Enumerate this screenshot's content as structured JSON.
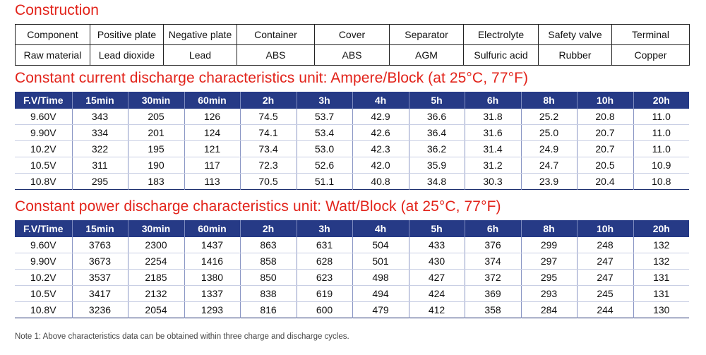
{
  "construction": {
    "title": "Construction",
    "row1": [
      "Component",
      "Positive plate",
      "Negative plate",
      "Container",
      "Cover",
      "Separator",
      "Electrolyte",
      "Safety valve",
      "Terminal"
    ],
    "row2": [
      "Raw material",
      "Lead dioxide",
      "Lead",
      "ABS",
      "ABS",
      "AGM",
      "Sulfuric acid",
      "Rubber",
      "Copper"
    ]
  },
  "constant_current": {
    "title": "Constant current discharge characteristics unit: Ampere/Block (at 25°C, 77°F)",
    "headers": [
      "F.V/Time",
      "15min",
      "30min",
      "60min",
      "2h",
      "3h",
      "4h",
      "5h",
      "6h",
      "8h",
      "10h",
      "20h"
    ],
    "rows": [
      [
        "9.60V",
        "343",
        "205",
        "126",
        "74.5",
        "53.7",
        "42.9",
        "36.6",
        "31.8",
        "25.2",
        "20.8",
        "11.0"
      ],
      [
        "9.90V",
        "334",
        "201",
        "124",
        "74.1",
        "53.4",
        "42.6",
        "36.4",
        "31.6",
        "25.0",
        "20.7",
        "11.0"
      ],
      [
        "10.2V",
        "322",
        "195",
        "121",
        "73.4",
        "53.0",
        "42.3",
        "36.2",
        "31.4",
        "24.9",
        "20.7",
        "11.0"
      ],
      [
        "10.5V",
        "311",
        "190",
        "117",
        "72.3",
        "52.6",
        "42.0",
        "35.9",
        "31.2",
        "24.7",
        "20.5",
        "10.9"
      ],
      [
        "10.8V",
        "295",
        "183",
        "113",
        "70.5",
        "51.1",
        "40.8",
        "34.8",
        "30.3",
        "23.9",
        "20.4",
        "10.8"
      ]
    ]
  },
  "constant_power": {
    "title": "Constant power discharge characteristics unit: Watt/Block (at 25°C, 77°F)",
    "headers": [
      "F.V/Time",
      "15min",
      "30min",
      "60min",
      "2h",
      "3h",
      "4h",
      "5h",
      "6h",
      "8h",
      "10h",
      "20h"
    ],
    "rows": [
      [
        "9.60V",
        "3763",
        "2300",
        "1437",
        "863",
        "631",
        "504",
        "433",
        "376",
        "299",
        "248",
        "132"
      ],
      [
        "9.90V",
        "3673",
        "2254",
        "1416",
        "858",
        "628",
        "501",
        "430",
        "374",
        "297",
        "247",
        "132"
      ],
      [
        "10.2V",
        "3537",
        "2185",
        "1380",
        "850",
        "623",
        "498",
        "427",
        "372",
        "295",
        "247",
        "131"
      ],
      [
        "10.5V",
        "3417",
        "2132",
        "1337",
        "838",
        "619",
        "494",
        "424",
        "369",
        "293",
        "245",
        "131"
      ],
      [
        "10.8V",
        "3236",
        "2054",
        "1293",
        "816",
        "600",
        "479",
        "412",
        "358",
        "284",
        "244",
        "130"
      ]
    ]
  },
  "note": "Note 1: Above characteristics data can be obtained within three charge and discharge cycles.",
  "colors": {
    "heading": "#e2231a",
    "table_header": "#263a86"
  }
}
